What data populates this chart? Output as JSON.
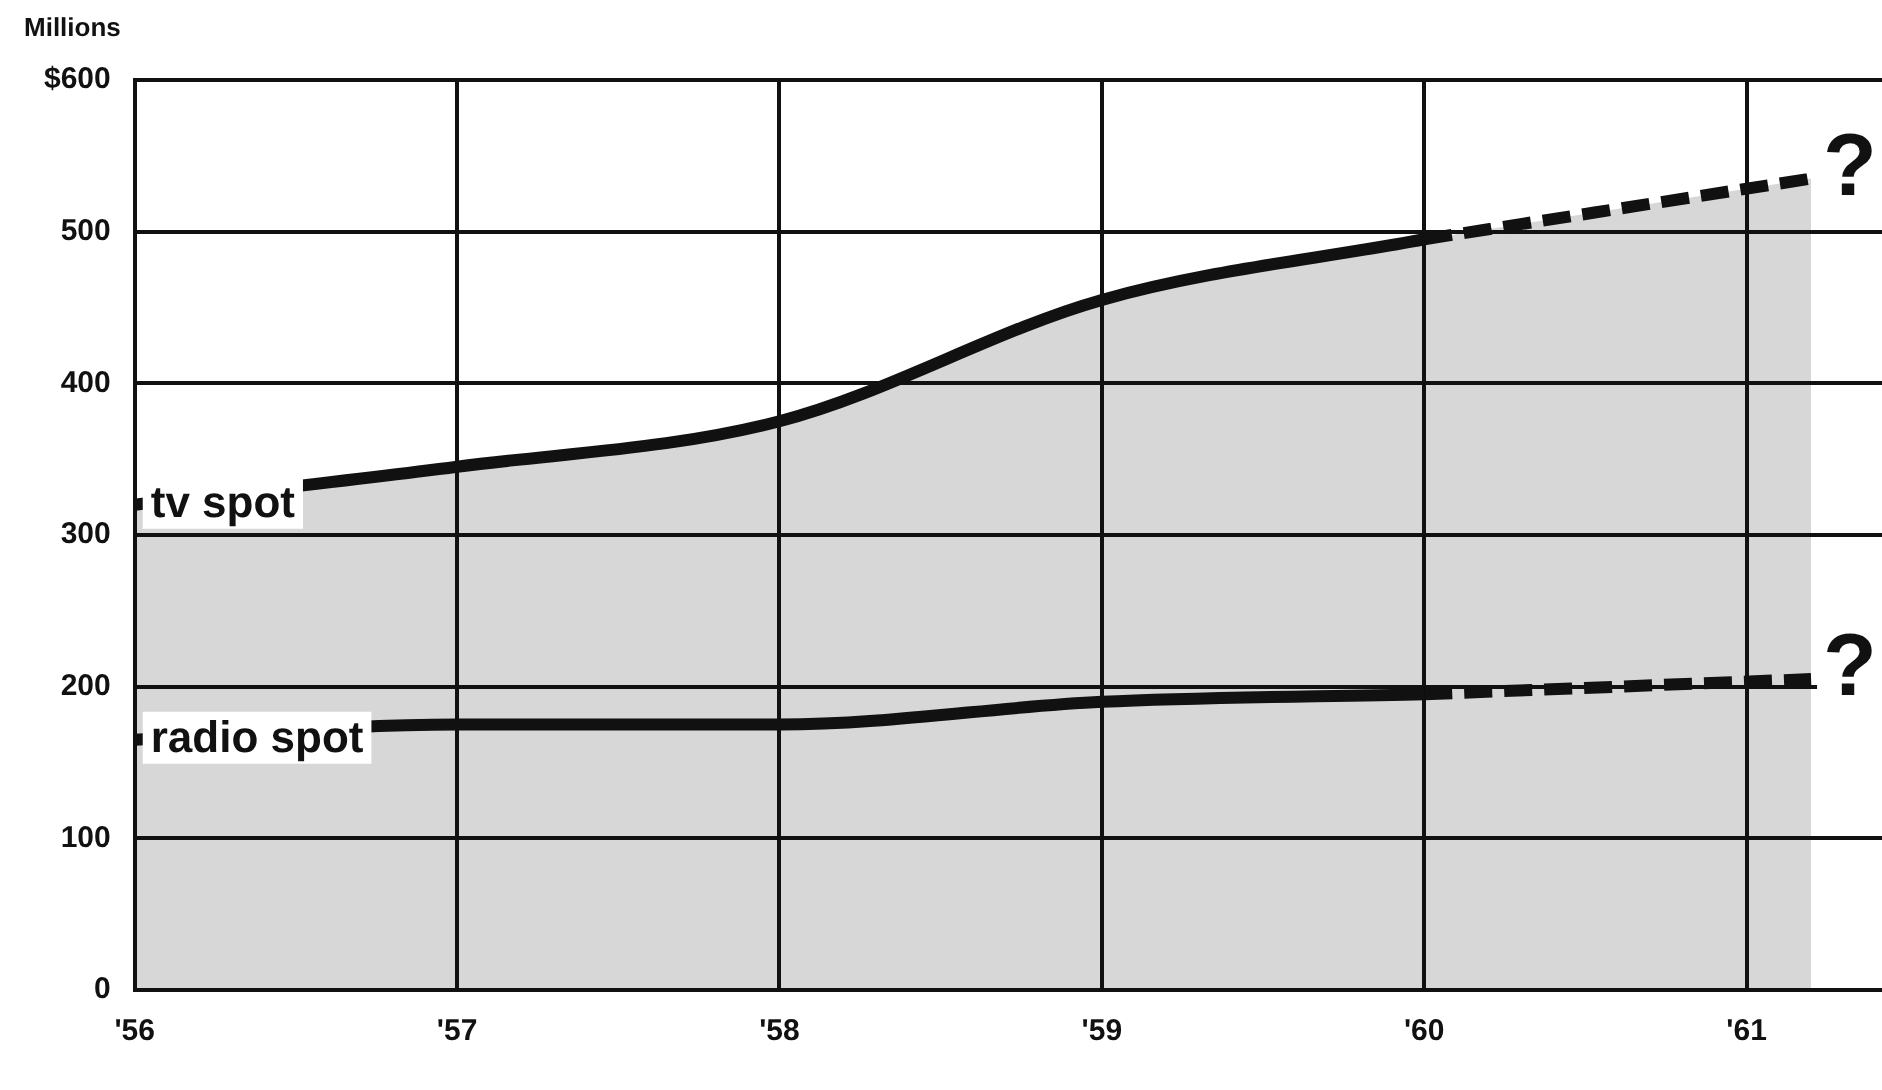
{
  "chart_data": {
    "type": "line",
    "ylabel": "Millions",
    "xlim": [
      1956,
      1961.42
    ],
    "xticks": [
      {
        "value": 1956,
        "label": "'56"
      },
      {
        "value": 1957,
        "label": "'57"
      },
      {
        "value": 1958,
        "label": "'58"
      },
      {
        "value": 1959,
        "label": "'59"
      },
      {
        "value": 1960,
        "label": "'60"
      },
      {
        "value": 1961,
        "label": "'61"
      }
    ],
    "ylim": [
      0,
      600
    ],
    "yticks": [
      0,
      100,
      200,
      300,
      400,
      500,
      {
        "value": 600,
        "label": "$600"
      }
    ],
    "grid": true,
    "legend": false,
    "marker": "none",
    "series": [
      {
        "name": "tv spot",
        "type": "area",
        "color": "#111111",
        "x": [
          1956,
          1957,
          1958,
          1959,
          1960
        ],
        "values": [
          320,
          345,
          375,
          455,
          495
        ],
        "line_style": "solid"
      },
      {
        "type": "area",
        "color": "#111111",
        "x": [
          1960,
          1961.2
        ],
        "values": [
          495,
          535
        ],
        "line_style": "dashed"
      },
      {
        "name": "radio spot",
        "type": "line",
        "color": "#111111",
        "x": [
          1956,
          1957,
          1958,
          1959,
          1960
        ],
        "values": [
          165,
          175,
          175,
          190,
          195
        ],
        "line_style": "solid"
      },
      {
        "type": "line",
        "color": "#111111",
        "x": [
          1960,
          1961.2
        ],
        "values": [
          195,
          205
        ],
        "line_style": "dashed"
      }
    ],
    "annotations": [
      {
        "text": "?",
        "x": 1961.2,
        "y": 535
      },
      {
        "text": "?",
        "x": 1961.2,
        "y": 205
      }
    ]
  }
}
